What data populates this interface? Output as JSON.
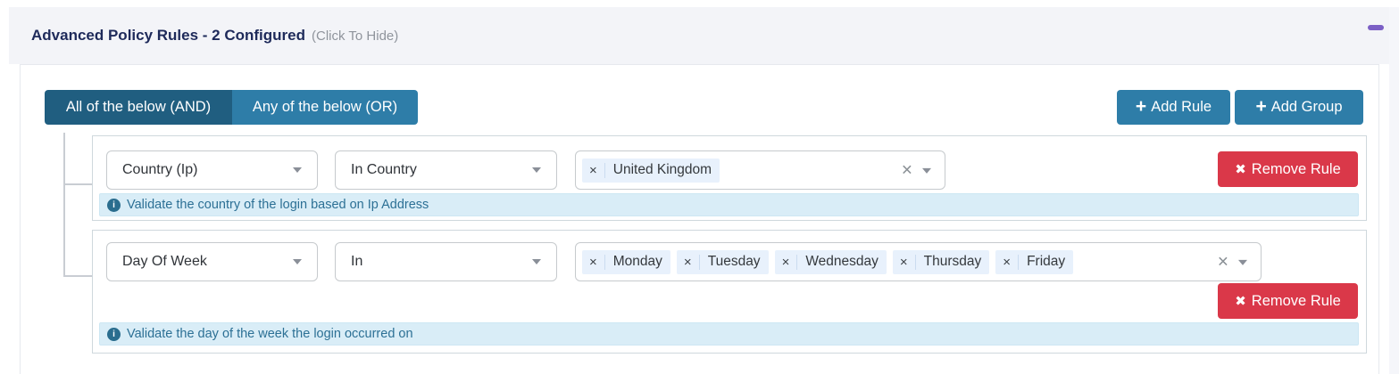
{
  "header": {
    "title": "Advanced Policy Rules - 2 Configured",
    "hint": "(Click To Hide)"
  },
  "toolbar": {
    "and_label": "All of the below (AND)",
    "or_label": "Any of the below (OR)",
    "add_rule_label": "Add Rule",
    "add_group_label": "Add Group",
    "plus_icon": "+"
  },
  "icons": {
    "collapse_icon": "minus-bar",
    "chevron_icon": "chevron-down",
    "remove_x": "✖",
    "clear_x": "×",
    "tag_x": "×",
    "info_i": "i"
  },
  "rules": [
    {
      "field": "Country (Ip)",
      "operator": "In Country",
      "values": [
        "United Kingdom"
      ],
      "info": "Validate the country of the login based on Ip Address",
      "remove_label": "Remove Rule"
    },
    {
      "field": "Day Of Week",
      "operator": "In",
      "values": [
        "Monday",
        "Tuesday",
        "Wednesday",
        "Thursday",
        "Friday"
      ],
      "info": "Validate the day of the week the login occurred on",
      "remove_label": "Remove Rule"
    }
  ],
  "colors": {
    "header_bg": "#f3f4f8",
    "title_text": "#1e2a5a",
    "accent_dark": "#205e80",
    "accent": "#2e7da8",
    "danger": "#da3849",
    "collapse_purple": "#7b5fc5",
    "info_bg": "#d9edf7",
    "info_text": "#2c7095",
    "tag_bg": "#e8f1fc"
  }
}
